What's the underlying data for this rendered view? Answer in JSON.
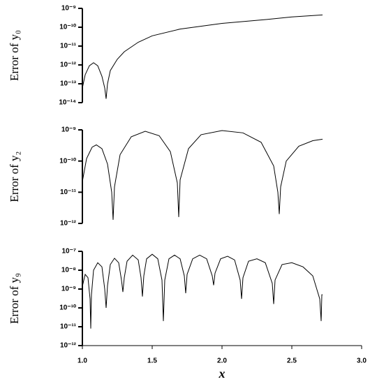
{
  "chart_data": [
    {
      "type": "line",
      "ylabel": "Error of y₀",
      "log_scale": true,
      "color": "#000000",
      "xlim": [
        1,
        3
      ],
      "ylim": [
        1e-14,
        1e-09
      ],
      "yticks": [
        {
          "value": 1e-09,
          "label": "10⁻⁹"
        },
        {
          "value": 1e-10,
          "label": "10⁻¹⁰"
        },
        {
          "value": 1e-11,
          "label": "10⁻¹¹"
        },
        {
          "value": 1e-12,
          "label": "10⁻¹²"
        },
        {
          "value": 1e-13,
          "label": "10⁻¹³"
        },
        {
          "value": 1e-14,
          "label": "10⁻¹⁴"
        }
      ],
      "x": [
        1.0,
        1.02,
        1.05,
        1.08,
        1.11,
        1.14,
        1.16,
        1.17,
        1.18,
        1.2,
        1.25,
        1.3,
        1.4,
        1.5,
        1.7,
        2.0,
        2.3,
        2.5,
        2.72
      ],
      "values": [
        6e-14,
        3e-13,
        9e-13,
        1.3e-12,
        9e-13,
        2.5e-13,
        6e-14,
        1.6e-14,
        1e-13,
        5e-13,
        2e-12,
        5e-12,
        1.6e-11,
        3.5e-11,
        8e-11,
        1.6e-10,
        2.5e-10,
        3.5e-10,
        4.5e-10
      ]
    },
    {
      "type": "line",
      "ylabel": "Error of y₂",
      "log_scale": true,
      "color": "#000000",
      "xlim": [
        1,
        3
      ],
      "ylim": [
        1e-12,
        1e-09
      ],
      "yticks": [
        {
          "value": 1e-09,
          "label": "10⁻⁹"
        },
        {
          "value": 1e-10,
          "label": "10⁻¹⁰"
        },
        {
          "value": 1e-11,
          "label": "10⁻¹¹"
        },
        {
          "value": 1e-12,
          "label": "10⁻¹²"
        }
      ],
      "x": [
        1.0,
        1.03,
        1.07,
        1.1,
        1.14,
        1.18,
        1.21,
        1.22,
        1.23,
        1.27,
        1.35,
        1.45,
        1.55,
        1.63,
        1.68,
        1.69,
        1.7,
        1.76,
        1.85,
        2.0,
        2.15,
        2.28,
        2.37,
        2.4,
        2.41,
        2.42,
        2.46,
        2.55,
        2.65,
        2.72
      ],
      "values": [
        2.2e-11,
        1.2e-10,
        2.8e-10,
        3.3e-10,
        2.5e-10,
        8e-11,
        1e-11,
        1.3e-12,
        1.5e-11,
        1.6e-10,
        6e-10,
        9e-10,
        6.5e-10,
        2e-10,
        2e-11,
        1.6e-12,
        2.5e-11,
        2.5e-10,
        7e-10,
        9.5e-10,
        8e-10,
        4e-10,
        7e-11,
        1e-11,
        2e-12,
        1.5e-11,
        1e-10,
        3e-10,
        4.5e-10,
        5e-10
      ]
    },
    {
      "type": "line",
      "ylabel": "Error of y₉",
      "xlabel": "x",
      "log_scale": true,
      "color": "#000000",
      "xlim": [
        1,
        3
      ],
      "ylim": [
        1e-12,
        1e-07
      ],
      "xticks": [
        {
          "value": 1,
          "label": "1.0"
        },
        1.5,
        {
          "value": 2,
          "label": "2.0"
        },
        2.5,
        {
          "value": 3,
          "label": "3.0"
        }
      ],
      "yticks": [
        {
          "value": 1e-07,
          "label": "10⁻⁷"
        },
        {
          "value": 1e-08,
          "label": "10⁻⁸"
        },
        {
          "value": 1e-09,
          "label": "10⁻⁹"
        },
        {
          "value": 1e-10,
          "label": "10⁻¹⁰"
        },
        {
          "value": 1e-11,
          "label": "10⁻¹¹"
        },
        {
          "value": 1e-12,
          "label": "10⁻¹²"
        }
      ],
      "x": [
        1.0,
        1.02,
        1.04,
        1.055,
        1.06,
        1.065,
        1.08,
        1.11,
        1.14,
        1.16,
        1.17,
        1.18,
        1.2,
        1.23,
        1.26,
        1.28,
        1.29,
        1.3,
        1.32,
        1.36,
        1.4,
        1.42,
        1.43,
        1.44,
        1.46,
        1.5,
        1.54,
        1.57,
        1.58,
        1.59,
        1.62,
        1.66,
        1.7,
        1.73,
        1.74,
        1.75,
        1.79,
        1.84,
        1.89,
        1.93,
        1.94,
        1.95,
        1.99,
        2.04,
        2.09,
        2.13,
        2.14,
        2.15,
        2.19,
        2.25,
        2.31,
        2.36,
        2.37,
        2.38,
        2.43,
        2.5,
        2.58,
        2.65,
        2.7,
        2.71,
        2.715,
        2.72
      ],
      "values": [
        1.4e-09,
        6e-09,
        4e-09,
        3e-10,
        8e-12,
        5e-10,
        1e-08,
        2.5e-08,
        1.5e-08,
        1e-09,
        1e-10,
        1.5e-09,
        2e-08,
        4.3e-08,
        2.5e-08,
        3e-09,
        7e-10,
        4e-09,
        3e-08,
        6.3e-08,
        3.5e-08,
        4e-09,
        4e-10,
        5e-09,
        4e-08,
        7e-08,
        4e-08,
        3e-09,
        2e-11,
        3e-09,
        4e-08,
        6.3e-08,
        4e-08,
        5e-09,
        6e-10,
        6e-09,
        4e-08,
        6.3e-08,
        4e-08,
        5e-09,
        1.6e-09,
        7e-09,
        4e-08,
        5.5e-08,
        3.5e-08,
        3e-09,
        3e-10,
        4e-09,
        3e-08,
        4e-08,
        2.5e-08,
        2e-09,
        1.6e-10,
        3e-09,
        2e-08,
        2.5e-08,
        1.5e-08,
        5e-09,
        3e-10,
        2e-11,
        5e-10,
        5e-10
      ]
    }
  ]
}
